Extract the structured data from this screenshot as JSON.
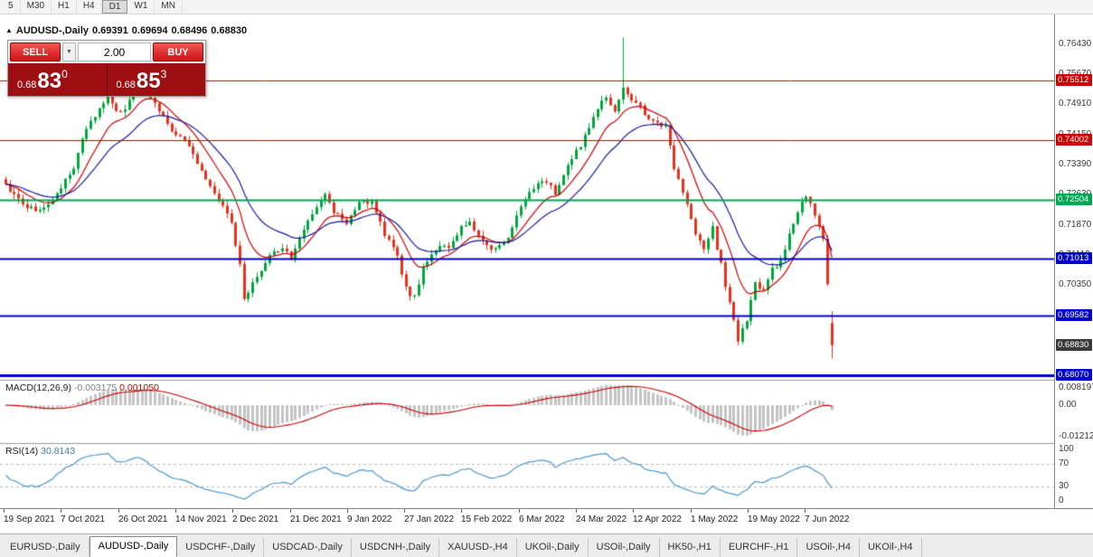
{
  "toolbar": {
    "timeframes": [
      "5",
      "M30",
      "H1",
      "H4",
      "D1",
      "W1",
      "MN"
    ],
    "active_timeframe": "D1"
  },
  "chart_header": {
    "symbol": "AUDUSD-,Daily",
    "open": "0.69391",
    "high": "0.69694",
    "low": "0.68496",
    "close": "0.68830"
  },
  "trade_panel": {
    "sell_label": "SELL",
    "buy_label": "BUY",
    "volume": "2.00",
    "dropdown_icon": "▼",
    "sell_price": {
      "prefix": "0.68",
      "big": "83",
      "sup": "0"
    },
    "buy_price": {
      "prefix": "0.68",
      "big": "85",
      "sup": "3"
    }
  },
  "price_axis": {
    "labels": [
      "0.76430",
      "0.75670",
      "0.74910",
      "0.74150",
      "0.73390",
      "0.72630",
      "0.71870",
      "0.71110",
      "0.70350",
      "0.69590",
      "0.68830",
      "0.68070"
    ],
    "current_price": "0.68830"
  },
  "levels": [
    {
      "price": 0.75512,
      "label": "0.75512",
      "color": "#cc0000",
      "width": 1
    },
    {
      "price": 0.74002,
      "label": "0.74002",
      "color": "#cc0000",
      "width": 1
    },
    {
      "price": 0.72504,
      "label": "0.72504",
      "color": "#00a651",
      "width": 2
    },
    {
      "price": 0.71013,
      "label": "0.71013",
      "color": "#0000cc",
      "width": 2
    },
    {
      "price": 0.69582,
      "label": "0.69582",
      "color": "#0000cc",
      "width": 2
    },
    {
      "price": 0.6807,
      "label": "0.68070",
      "color": "#0000cc",
      "width": 3
    }
  ],
  "indicators": {
    "macd": {
      "title": "MACD(12,26,9)",
      "value1": "-0.003175",
      "value2": "0.001050",
      "axis": [
        "0.008197",
        "0.00",
        "-0.01212"
      ]
    },
    "rsi": {
      "title": "RSI(14)",
      "value": "30.8143",
      "axis": [
        "100",
        "70",
        "30",
        "0"
      ],
      "levels": [
        70,
        30
      ]
    }
  },
  "date_axis": [
    "19 Sep 2021",
    "7 Oct 2021",
    "26 Oct 2021",
    "14 Nov 2021",
    "2 Dec 2021",
    "21 Dec 2021",
    "9 Jan 2022",
    "27 Jan 2022",
    "15 Feb 2022",
    "6 Mar 2022",
    "24 Mar 2022",
    "12 Apr 2022",
    "1 May 2022",
    "19 May 2022",
    "7 Jun 2022"
  ],
  "tabs": {
    "items": [
      "EURUSD-,Daily",
      "AUDUSD-,Daily",
      "USDCHF-,Daily",
      "USDCAD-,Daily",
      "USDCNH-,Daily",
      "XAUUSD-,H4",
      "UKOil-,Daily",
      "USOil-,Daily",
      "HK50-,H1",
      "EURCHF-,H1",
      "USOil-,H4",
      "UKOil-,H4"
    ],
    "active_index": 1
  },
  "chart_data": {
    "type": "candlestick",
    "symbol": "AUDUSD",
    "timeframe": "Daily",
    "ylim": [
      0.6796,
      0.7718
    ],
    "candle_count": 195,
    "x_start": 6,
    "x_step": 4.71,
    "noise": 0.0016,
    "close_waypoints": [
      [
        0,
        0.729
      ],
      [
        4,
        0.724
      ],
      [
        8,
        0.7222
      ],
      [
        11,
        0.7252
      ],
      [
        13,
        0.7282
      ],
      [
        16,
        0.733
      ],
      [
        18,
        0.7405
      ],
      [
        20,
        0.7445
      ],
      [
        22,
        0.7478
      ],
      [
        24,
        0.7512
      ],
      [
        26,
        0.7468
      ],
      [
        28,
        0.7482
      ],
      [
        31,
        0.7545
      ],
      [
        33,
        0.7522
      ],
      [
        35,
        0.7492
      ],
      [
        38,
        0.7438
      ],
      [
        40,
        0.7415
      ],
      [
        42,
        0.7398
      ],
      [
        45,
        0.7338
      ],
      [
        48,
        0.7288
      ],
      [
        51,
        0.7238
      ],
      [
        53,
        0.7185
      ],
      [
        55,
        0.7085
      ],
      [
        56,
        0.6998
      ],
      [
        58,
        0.7048
      ],
      [
        60,
        0.7075
      ],
      [
        62,
        0.7105
      ],
      [
        65,
        0.7135
      ],
      [
        67,
        0.7095
      ],
      [
        69,
        0.7155
      ],
      [
        71,
        0.7198
      ],
      [
        73,
        0.7228
      ],
      [
        75,
        0.7262
      ],
      [
        77,
        0.7218
      ],
      [
        80,
        0.7188
      ],
      [
        83,
        0.7252
      ],
      [
        86,
        0.724
      ],
      [
        89,
        0.7165
      ],
      [
        92,
        0.7108
      ],
      [
        94,
        0.7028
      ],
      [
        96,
        0.7002
      ],
      [
        98,
        0.7082
      ],
      [
        101,
        0.7122
      ],
      [
        104,
        0.7135
      ],
      [
        107,
        0.7178
      ],
      [
        109,
        0.7192
      ],
      [
        111,
        0.7152
      ],
      [
        114,
        0.7122
      ],
      [
        117,
        0.7138
      ],
      [
        120,
        0.7205
      ],
      [
        123,
        0.7268
      ],
      [
        126,
        0.7305
      ],
      [
        128,
        0.7282
      ],
      [
        129,
        0.7262
      ],
      [
        131,
        0.7315
      ],
      [
        134,
        0.7372
      ],
      [
        137,
        0.7425
      ],
      [
        139,
        0.7482
      ],
      [
        141,
        0.7505
      ],
      [
        143,
        0.7478
      ],
      [
        145,
        0.7528
      ],
      [
        147,
        0.7505
      ],
      [
        149,
        0.7482
      ],
      [
        152,
        0.7448
      ],
      [
        155,
        0.7435
      ],
      [
        157,
        0.7335
      ],
      [
        159,
        0.7262
      ],
      [
        160,
        0.7235
      ],
      [
        162,
        0.7165
      ],
      [
        164,
        0.7122
      ],
      [
        166,
        0.7178
      ],
      [
        168,
        0.7085
      ],
      [
        170,
        0.6985
      ],
      [
        172,
        0.6895
      ],
      [
        174,
        0.6945
      ],
      [
        176,
        0.7035
      ],
      [
        178,
        0.7015
      ],
      [
        180,
        0.7075
      ],
      [
        182,
        0.7095
      ],
      [
        184,
        0.7165
      ],
      [
        186,
        0.7225
      ],
      [
        188,
        0.7262
      ],
      [
        190,
        0.7215
      ],
      [
        192,
        0.7145
      ],
      [
        193,
        0.7045
      ],
      [
        194,
        0.6883
      ]
    ],
    "spike": {
      "index": 145,
      "high": 0.766
    },
    "last_candle": {
      "open": 0.69391,
      "high": 0.69694,
      "low": 0.68496,
      "close": 0.6883
    },
    "up_color": "#00a83c",
    "down_color": "#e8321e",
    "ma_fast_color": "#cc0000",
    "ma_slow_color": "#1a1aa6",
    "ma_fast_period": 10,
    "ma_slow_period": 21,
    "macd_params": [
      12,
      26,
      9
    ],
    "macd_hist_color": "#c4c4c4",
    "macd_signal_color": "#cc0000",
    "rsi_period": 14,
    "rsi_color": "#4a96d2"
  }
}
